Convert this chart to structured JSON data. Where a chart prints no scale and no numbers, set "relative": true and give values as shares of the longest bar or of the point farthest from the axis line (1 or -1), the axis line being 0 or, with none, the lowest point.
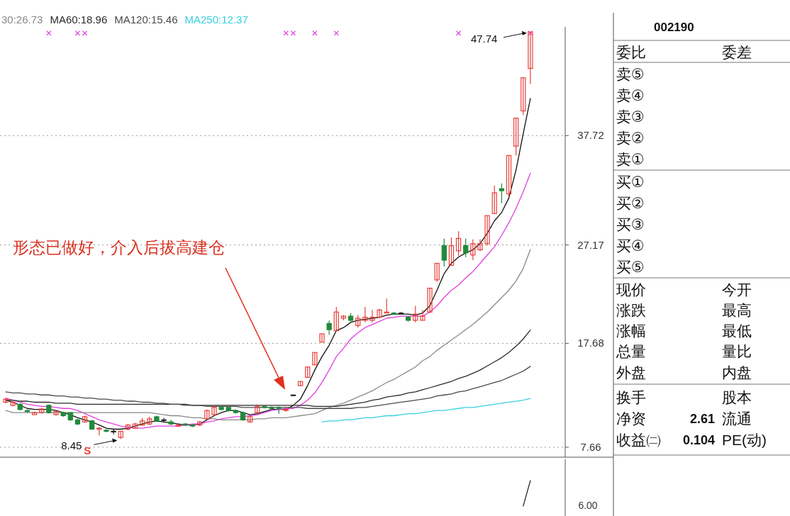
{
  "chart_data": [
    {
      "type": "candlestick",
      "categories": [
        null,
        null,
        null,
        null,
        null,
        null,
        null,
        null,
        null,
        null,
        null,
        null,
        null,
        null,
        null,
        null,
        null,
        null,
        null,
        null,
        null,
        null,
        null,
        null,
        null,
        null,
        null,
        null,
        null,
        null,
        null,
        null,
        null,
        null,
        null,
        null,
        null,
        null,
        null,
        null,
        null,
        null,
        null,
        null,
        null,
        null,
        null,
        null,
        null,
        null,
        null,
        null,
        null,
        null,
        null,
        null,
        null,
        null,
        null,
        null,
        null,
        null,
        null,
        null,
        null,
        null,
        null,
        null,
        null,
        null,
        null,
        null,
        null,
        null
      ],
      "ohlc": [
        [
          12.0,
          12.4,
          11.9,
          12.3
        ],
        [
          11.7,
          12.1,
          11.6,
          12.0
        ],
        [
          11.8,
          11.9,
          11.2,
          11.3
        ],
        [
          11.2,
          11.3,
          11.0,
          11.1
        ],
        [
          10.8,
          11.1,
          10.8,
          11.0
        ],
        [
          11.0,
          11.4,
          10.9,
          11.35
        ],
        [
          11.7,
          11.8,
          10.9,
          11.0
        ],
        [
          10.8,
          11.2,
          10.7,
          11.1
        ],
        [
          11.0,
          11.1,
          10.6,
          10.7
        ],
        [
          11.0,
          11.0,
          10.2,
          10.3
        ],
        [
          10.3,
          10.4,
          9.8,
          9.9
        ],
        [
          10.1,
          10.7,
          10.0,
          10.6
        ],
        [
          10.2,
          10.3,
          9.4,
          9.4
        ],
        [
          9.4,
          9.6,
          8.8,
          9.5
        ],
        [
          9.3,
          9.4,
          9.1,
          9.2
        ],
        [
          9.2,
          9.4,
          8.9,
          9.2
        ],
        [
          8.6,
          9.2,
          8.45,
          9.2
        ],
        [
          9.4,
          9.9,
          9.3,
          9.8
        ],
        [
          9.5,
          10.0,
          9.5,
          9.9
        ],
        [
          9.8,
          10.5,
          9.7,
          10.2
        ],
        [
          9.9,
          10.6,
          9.8,
          10.4
        ],
        [
          10.6,
          10.7,
          10.1,
          10.2
        ],
        [
          10.3,
          10.5,
          10.1,
          10.3
        ],
        [
          10.1,
          10.3,
          9.8,
          9.9
        ],
        [
          9.7,
          9.9,
          9.6,
          9.8
        ],
        [
          9.9,
          10.0,
          9.7,
          9.8
        ],
        [
          9.8,
          9.9,
          9.6,
          9.7
        ],
        [
          9.8,
          10.2,
          9.7,
          10.1
        ],
        [
          10.4,
          11.3,
          10.3,
          11.2
        ],
        [
          10.8,
          11.7,
          10.7,
          11.5
        ],
        [
          11.5,
          11.6,
          11.2,
          11.3
        ],
        [
          11.5,
          11.6,
          11.1,
          11.2
        ],
        [
          11.2,
          11.3,
          10.9,
          11.0
        ],
        [
          11.0,
          11.1,
          10.2,
          10.3
        ],
        [
          10.1,
          10.7,
          10.0,
          10.6
        ],
        [
          11.0,
          11.8,
          10.9,
          11.6
        ],
        [
          11.6,
          11.7,
          11.4,
          11.5
        ],
        [
          11.5,
          11.6,
          11.3,
          11.4
        ],
        [
          11.5,
          11.6,
          10.9,
          11.4
        ],
        [
          11.2,
          11.5,
          11.1,
          11.3
        ],
        [
          12.7,
          12.7,
          12.7,
          12.7
        ],
        [
          13.6,
          14.0,
          13.6,
          14.0
        ],
        [
          14.4,
          15.4,
          14.4,
          15.4
        ],
        [
          15.6,
          16.8,
          15.6,
          16.8
        ],
        [
          17.8,
          18.6,
          17.8,
          18.6
        ],
        [
          19.6,
          19.9,
          18.5,
          19.0
        ],
        [
          18.9,
          21.2,
          18.9,
          20.7
        ],
        [
          20.1,
          20.4,
          19.9,
          20.3
        ],
        [
          20.3,
          20.6,
          19.7,
          19.9
        ],
        [
          19.4,
          20.4,
          19.2,
          20.1
        ],
        [
          19.9,
          21.2,
          19.7,
          20.2
        ],
        [
          19.9,
          20.9,
          19.7,
          20.2
        ],
        [
          20.2,
          21.0,
          20.1,
          20.9
        ],
        [
          20.6,
          22.0,
          20.6,
          20.7
        ],
        [
          20.6,
          20.7,
          20.4,
          20.5
        ],
        [
          20.6,
          20.7,
          20.5,
          20.6
        ],
        [
          20.2,
          20.3,
          19.8,
          19.9
        ],
        [
          19.9,
          21.3,
          19.7,
          20.5
        ],
        [
          19.9,
          20.9,
          19.9,
          20.3
        ],
        [
          20.7,
          23.0,
          20.6,
          23.0
        ],
        [
          23.8,
          25.4,
          23.6,
          25.4
        ],
        [
          27.1,
          27.8,
          25.1,
          25.7
        ],
        [
          25.2,
          27.9,
          25.2,
          27.1
        ],
        [
          26.6,
          28.5,
          26.1,
          27.8
        ],
        [
          27.1,
          27.8,
          26.0,
          26.4
        ],
        [
          26.2,
          27.7,
          25.7,
          27.3
        ],
        [
          26.7,
          27.7,
          26.6,
          27.3
        ],
        [
          27.3,
          30.0,
          27.1,
          30.0
        ],
        [
          30.2,
          32.9,
          30.2,
          32.2
        ],
        [
          32.6,
          33.1,
          31.2,
          32.4
        ],
        [
          32.1,
          35.8,
          31.8,
          35.8
        ],
        [
          36.7,
          39.4,
          35.8,
          39.4
        ],
        [
          40.1,
          43.3,
          39.7,
          43.3
        ],
        [
          44.2,
          47.74,
          42.7,
          47.7
        ]
      ],
      "series": [
        {
          "type": "line",
          "color": "#111111",
          "values": [
            12.2,
            12.0,
            11.7,
            11.4,
            11.3,
            11.3,
            11.3,
            11.2,
            11.0,
            10.8,
            10.5,
            10.3,
            10.1,
            9.8,
            9.5,
            9.4,
            9.4,
            9.5,
            9.7,
            9.9,
            10.1,
            10.2,
            10.1,
            10.0,
            9.9,
            9.8,
            9.8,
            9.9,
            10.3,
            10.7,
            11.0,
            11.2,
            11.2,
            11.0,
            10.8,
            10.9,
            11.1,
            11.3,
            11.3,
            11.3,
            11.7,
            12.3,
            13.6,
            15.1,
            16.4,
            17.5,
            18.9,
            19.2,
            19.7,
            19.9,
            20.0,
            20.1,
            20.2,
            20.4,
            20.5,
            20.5,
            20.5,
            20.4,
            20.6,
            21.3,
            22.8,
            24.4,
            25.4,
            26.0,
            26.4,
            26.7,
            27.3,
            28.3,
            29.5,
            30.3,
            31.7,
            34.4,
            37.9,
            41.3
          ]
        },
        {
          "type": "line",
          "color": "#e040e0",
          "values": [
            12.4,
            12.2,
            12.0,
            11.8,
            11.7,
            11.6,
            11.6,
            11.5,
            11.4,
            11.4,
            11.2,
            10.9,
            10.6,
            10.3,
            10.1,
            9.9,
            9.7,
            9.6,
            9.5,
            9.5,
            9.6,
            9.7,
            9.7,
            9.7,
            9.7,
            9.8,
            9.9,
            9.9,
            10.1,
            10.2,
            10.4,
            10.5,
            10.6,
            10.6,
            10.7,
            10.8,
            11.0,
            11.2,
            11.3,
            11.4,
            11.4,
            11.7,
            12.2,
            12.9,
            13.9,
            15.1,
            16.4,
            17.2,
            18.1,
            18.7,
            19.2,
            19.5,
            19.8,
            20.1,
            20.2,
            20.3,
            20.3,
            20.3,
            20.3,
            20.7,
            21.3,
            22.1,
            22.8,
            23.3,
            24.0,
            24.6,
            25.4,
            26.2,
            27.0,
            28.1,
            29.3,
            30.7,
            32.3,
            34.1
          ]
        },
        {
          "type": "line",
          "name": "30:26.73",
          "color": "#8a8a8a",
          "values": [
            11.2,
            11.0,
            11.0,
            11.0,
            11.0,
            11.0,
            11.0,
            11.0,
            11.0,
            11.0,
            11.0,
            11.0,
            11.0,
            11.0,
            11.0,
            11.0,
            11.0,
            11.0,
            11.0,
            11.0,
            11.0,
            10.9,
            10.8,
            10.7,
            10.7,
            10.6,
            10.5,
            10.5,
            10.4,
            10.4,
            10.3,
            10.3,
            10.3,
            10.3,
            10.3,
            10.4,
            10.4,
            10.5,
            10.5,
            10.5,
            10.6,
            10.7,
            10.8,
            10.9,
            11.2,
            11.5,
            11.7,
            11.9,
            12.2,
            12.5,
            12.8,
            13.1,
            13.5,
            13.9,
            14.2,
            14.6,
            15.0,
            15.4,
            16.0,
            16.4,
            17.0,
            17.5,
            18.0,
            18.5,
            19.0,
            19.5,
            20.1,
            20.7,
            21.4,
            22.1,
            22.8,
            23.7,
            24.9,
            26.73
          ]
        },
        {
          "type": "line",
          "name": "MA60:18.96",
          "color": "#2a2a2a",
          "values": [
            12.2,
            12.2,
            12.1,
            12.1,
            12.0,
            12.0,
            12.0,
            11.9,
            11.9,
            11.9,
            11.8,
            11.8,
            11.8,
            11.8,
            11.8,
            11.8,
            11.8,
            11.8,
            11.8,
            11.8,
            11.8,
            11.8,
            11.8,
            11.8,
            11.8,
            11.8,
            11.7,
            11.7,
            11.7,
            11.7,
            11.7,
            11.7,
            11.7,
            11.7,
            11.7,
            11.7,
            11.7,
            11.7,
            11.7,
            11.7,
            11.7,
            11.7,
            11.7,
            11.6,
            11.6,
            11.6,
            11.6,
            11.7,
            11.8,
            11.9,
            12.0,
            12.2,
            12.3,
            12.5,
            12.6,
            12.7,
            12.9,
            13.0,
            13.2,
            13.4,
            13.6,
            13.8,
            14.0,
            14.3,
            14.5,
            14.8,
            15.1,
            15.5,
            15.9,
            16.3,
            16.8,
            17.4,
            18.1,
            18.96
          ]
        },
        {
          "type": "line",
          "name": "MA120:15.46",
          "color": "#4a4a4a",
          "values": [
            13.0,
            12.9,
            12.9,
            12.8,
            12.8,
            12.7,
            12.7,
            12.6,
            12.6,
            12.5,
            12.5,
            12.4,
            12.4,
            12.3,
            12.3,
            12.2,
            12.2,
            12.1,
            12.1,
            12.0,
            12.0,
            11.9,
            11.9,
            11.8,
            11.8,
            11.7,
            11.7,
            11.7,
            11.6,
            11.6,
            11.6,
            11.6,
            11.6,
            11.5,
            11.5,
            11.5,
            11.5,
            11.5,
            11.5,
            11.5,
            11.5,
            11.5,
            11.4,
            11.4,
            11.4,
            11.4,
            11.4,
            11.4,
            11.4,
            11.5,
            11.5,
            11.6,
            11.7,
            11.8,
            11.9,
            12.0,
            12.1,
            12.2,
            12.3,
            12.4,
            12.6,
            12.7,
            12.8,
            13.0,
            13.1,
            13.3,
            13.5,
            13.7,
            13.9,
            14.1,
            14.4,
            14.7,
            15.0,
            15.46
          ]
        },
        {
          "type": "line",
          "name": "MA250:12.37",
          "color": "#38d0e0",
          "values": [
            null,
            null,
            null,
            null,
            null,
            null,
            null,
            null,
            null,
            null,
            null,
            null,
            null,
            null,
            null,
            null,
            null,
            null,
            null,
            null,
            null,
            null,
            null,
            null,
            null,
            null,
            null,
            null,
            null,
            null,
            null,
            null,
            null,
            null,
            null,
            null,
            null,
            null,
            null,
            null,
            null,
            null,
            null,
            null,
            10.1,
            10.2,
            10.2,
            10.3,
            10.3,
            10.4,
            10.5,
            10.5,
            10.6,
            10.7,
            10.7,
            10.8,
            10.9,
            10.9,
            11.0,
            11.1,
            11.2,
            11.2,
            11.3,
            11.4,
            11.5,
            11.5,
            11.6,
            11.7,
            11.8,
            11.9,
            12.0,
            12.1,
            12.2,
            12.37
          ]
        },
        {
          "type": "scatter",
          "color": "#e050e0",
          "marker": "cross",
          "values": [
            null,
            null,
            null,
            null,
            null,
            null,
            47.6,
            null,
            null,
            null,
            47.6,
            47.6,
            null,
            null,
            null,
            null,
            null,
            null,
            null,
            null,
            null,
            null,
            null,
            null,
            null,
            null,
            null,
            null,
            null,
            null,
            null,
            null,
            null,
            null,
            null,
            null,
            null,
            null,
            null,
            47.6,
            47.6,
            null,
            null,
            47.6,
            null,
            null,
            47.6,
            null,
            null,
            null,
            null,
            null,
            null,
            null,
            null,
            null,
            null,
            null,
            null,
            null,
            null,
            null,
            null,
            47.6,
            null,
            null,
            null,
            null,
            null,
            null,
            null,
            null,
            null,
            47.6
          ]
        }
      ],
      "ylim": [
        6.7,
        48.2
      ],
      "yticks": [
        7.66,
        17.68,
        27.17,
        37.72
      ],
      "grid": "y",
      "legend": "top left",
      "tick_labels": "y",
      "annotations": [
        "47.74",
        "8.45",
        "S",
        "形态已做好，介入后拔高建仓"
      ]
    },
    {
      "type": "line",
      "relative": true,
      "categories": [
        null,
        null,
        null,
        null,
        null,
        null,
        null,
        null,
        null,
        null,
        null,
        null,
        null,
        null,
        null,
        null,
        null,
        null,
        null,
        null,
        null,
        null,
        null,
        null,
        null,
        null,
        null,
        null,
        null,
        null,
        null,
        null,
        null,
        null,
        null,
        null,
        null,
        null,
        null,
        null,
        null,
        null,
        null,
        null,
        null,
        null,
        null,
        null,
        null,
        null,
        null,
        null,
        null,
        null,
        null,
        null,
        null,
        null,
        null,
        null,
        null,
        null,
        null,
        null,
        null,
        null,
        null,
        null,
        null,
        null,
        null,
        null,
        null,
        null
      ],
      "series": [
        {
          "color": "#222222",
          "values": [
            null,
            null,
            null,
            null,
            null,
            null,
            null,
            null,
            null,
            null,
            null,
            null,
            null,
            null,
            null,
            null,
            null,
            null,
            null,
            null,
            null,
            null,
            null,
            null,
            null,
            null,
            null,
            null,
            null,
            null,
            null,
            null,
            null,
            null,
            null,
            null,
            null,
            null,
            null,
            null,
            null,
            null,
            null,
            null,
            null,
            null,
            null,
            null,
            null,
            null,
            null,
            null,
            null,
            null,
            null,
            null,
            null,
            null,
            null,
            null,
            null,
            null,
            null,
            null,
            null,
            null,
            null,
            null,
            null,
            null,
            null,
            null,
            0,
            1
          ]
        }
      ],
      "annotations": [
        "6.00"
      ]
    },
    {
      "type": "other",
      "title": "002190",
      "annotations": [
        "委比",
        "委差",
        "卖⑤",
        "卖④",
        "卖③",
        "卖②",
        "卖①",
        "买①",
        "买②",
        "买③",
        "买④",
        "买⑤",
        "现价",
        "今开",
        "涨跌",
        "最高",
        "涨幅",
        "最低",
        "总量",
        "量比",
        "外盘",
        "内盘",
        "换手",
        "股本",
        "净资",
        "2.61",
        "流通",
        "收益㈡",
        "0.104",
        "PE(动)"
      ]
    }
  ]
}
